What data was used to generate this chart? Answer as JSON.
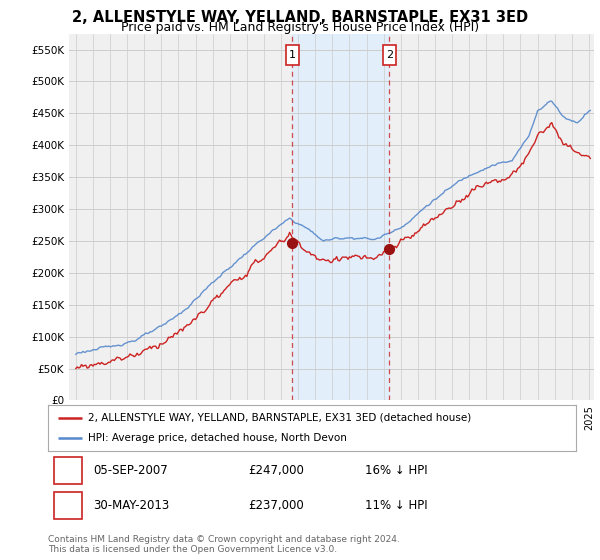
{
  "title": "2, ALLENSTYLE WAY, YELLAND, BARNSTAPLE, EX31 3ED",
  "subtitle": "Price paid vs. HM Land Registry's House Price Index (HPI)",
  "title_fontsize": 10.5,
  "subtitle_fontsize": 9,
  "ylim": [
    0,
    575000
  ],
  "yticks": [
    0,
    50000,
    100000,
    150000,
    200000,
    250000,
    300000,
    350000,
    400000,
    450000,
    500000,
    550000
  ],
  "ytick_labels": [
    "£0",
    "£50K",
    "£100K",
    "£150K",
    "£200K",
    "£250K",
    "£300K",
    "£350K",
    "£400K",
    "£450K",
    "£500K",
    "£550K"
  ],
  "hpi_color": "#5588cc",
  "price_color": "#cc2222",
  "sale1_date": "05-SEP-2007",
  "sale1_price": 247000,
  "sale1_pct": "16%",
  "sale1_t": 2007.667,
  "sale2_date": "30-MAY-2013",
  "sale2_price": 237000,
  "sale2_pct": "11%",
  "sale2_t": 2013.333,
  "legend_label1": "2, ALLENSTYLE WAY, YELLAND, BARNSTAPLE, EX31 3ED (detached house)",
  "legend_label2": "HPI: Average price, detached house, North Devon",
  "footnote": "Contains HM Land Registry data © Crown copyright and database right 2024.\nThis data is licensed under the Open Government Licence v3.0.",
  "background_color": "#ffffff",
  "plot_bg_color": "#f0f0f0",
  "grid_color": "#cccccc",
  "shade_color": "#ddeeff",
  "xlim_left": 1994.6,
  "xlim_right": 2025.3
}
